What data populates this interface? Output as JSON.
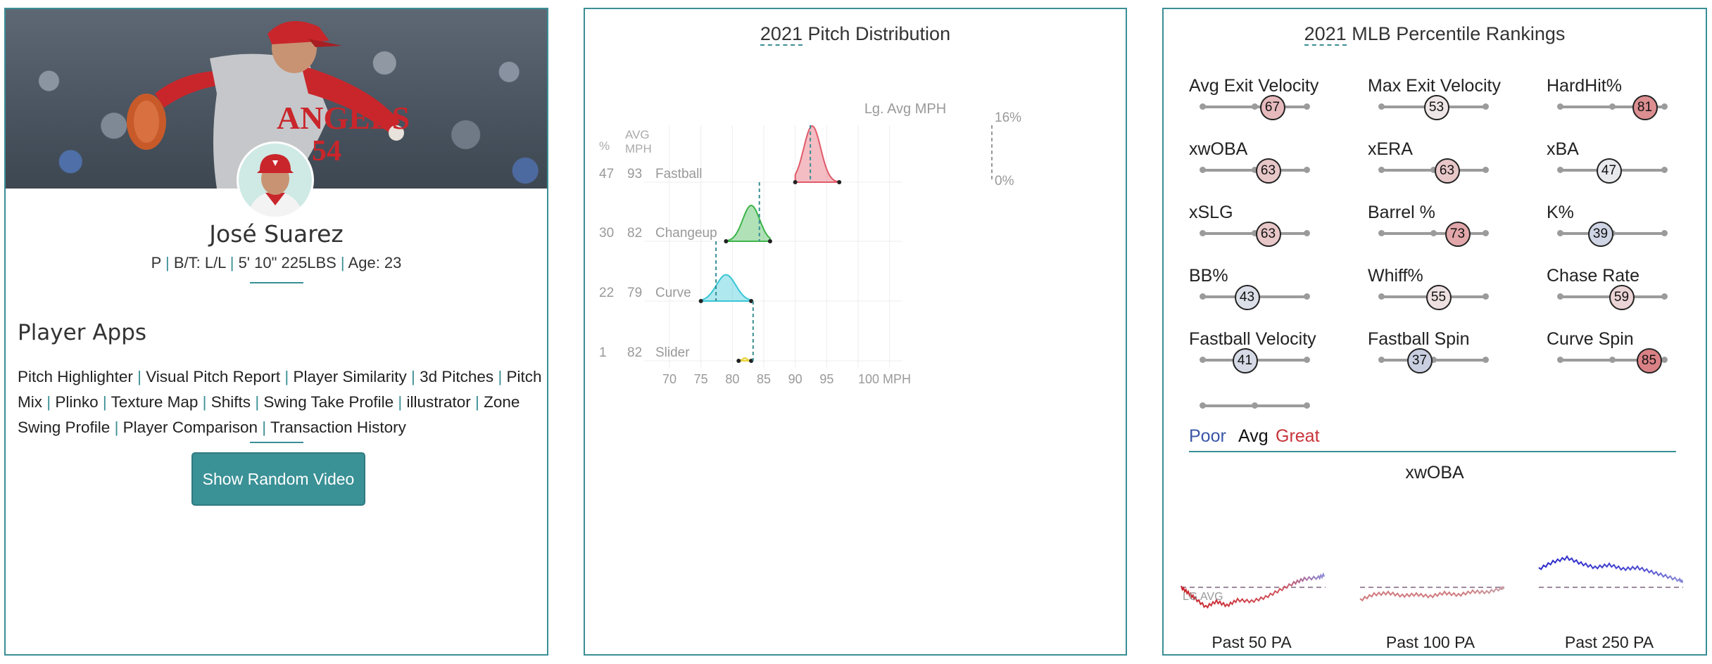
{
  "player": {
    "name": "José Suarez",
    "position": "P",
    "bats_throws": "B/T: L/L",
    "height_weight": "5' 10\" 225LBS",
    "age": "Age: 23",
    "jersey_text": "ANGELS",
    "jersey_number": "54"
  },
  "apps": {
    "title": "Player Apps",
    "items": [
      "Pitch Highlighter",
      "Visual Pitch Report",
      "Player Similarity",
      "3d Pitches",
      "Pitch Mix",
      "Plinko",
      "Texture Map",
      "Shifts",
      "Swing Take Profile",
      "illustrator",
      "Zone Swing Profile",
      "Player Comparison",
      "Transaction History"
    ],
    "button": "Show Random Video"
  },
  "pitch_distribution": {
    "title_year": "2021",
    "title_rest": "Pitch Distribution",
    "col_pct": "%",
    "col_avg": "AVG",
    "col_mph": "MPH",
    "lg_avg_label": "Lg. Avg MPH",
    "top_scale": "16%",
    "zero_scale": "0%",
    "x_ticks": [
      "70",
      "75",
      "80",
      "85",
      "90",
      "95",
      "100 MPH"
    ],
    "colors": {
      "Fastball": "#e05a6a",
      "Changeup": "#3cb54a",
      "Curve": "#38c6d6",
      "Slider": "#e8d23a"
    }
  },
  "chart_data": {
    "type": "area",
    "title": "2021 Pitch Distribution",
    "xlabel": "MPH",
    "xlim": [
      66,
      103
    ],
    "series": [
      {
        "name": "Fastball",
        "pct": 47,
        "avg_mph": 93,
        "range": [
          90,
          97
        ],
        "peak": 92.7,
        "lg_avg": 92.4
      },
      {
        "name": "Changeup",
        "pct": 30,
        "avg_mph": 82,
        "range": [
          79,
          86
        ],
        "peak": 83,
        "lg_avg": 84.3
      },
      {
        "name": "Curve",
        "pct": 22,
        "avg_mph": 79,
        "range": [
          75,
          83
        ],
        "peak": 79,
        "lg_avg": 77.4
      },
      {
        "name": "Slider",
        "pct": 1,
        "avg_mph": 82,
        "range": [
          81,
          83
        ],
        "peak": 82,
        "lg_avg": 83.3
      }
    ]
  },
  "percentile": {
    "title_year": "2021",
    "title_rest": "MLB Percentile Rankings",
    "metrics": [
      {
        "label": "Avg Exit Velocity",
        "value": 67
      },
      {
        "label": "Max Exit Velocity",
        "value": 53
      },
      {
        "label": "HardHit%",
        "value": 81
      },
      {
        "label": "xwOBA",
        "value": 63
      },
      {
        "label": "xERA",
        "value": 63
      },
      {
        "label": "xBA",
        "value": 47
      },
      {
        "label": "xSLG",
        "value": 63
      },
      {
        "label": "Barrel %",
        "value": 73
      },
      {
        "label": "K%",
        "value": 39
      },
      {
        "label": "BB%",
        "value": 43
      },
      {
        "label": "Whiff%",
        "value": 55
      },
      {
        "label": "Chase Rate",
        "value": 59
      },
      {
        "label": "Fastball Velocity",
        "value": 41
      },
      {
        "label": "Fastball Spin",
        "value": 37
      },
      {
        "label": "Curve Spin",
        "value": 85
      }
    ],
    "legend": {
      "poor": "Poor",
      "avg": "Avg",
      "great": "Great"
    },
    "legend_colors": {
      "poor": "#3a56a8",
      "great": "#c8333a"
    },
    "xwoba_title": "xwOBA",
    "lg_avg_label": "LG AVG",
    "windows": [
      "Past 50 PA",
      "Past 100 PA",
      "Past 250 PA"
    ]
  }
}
